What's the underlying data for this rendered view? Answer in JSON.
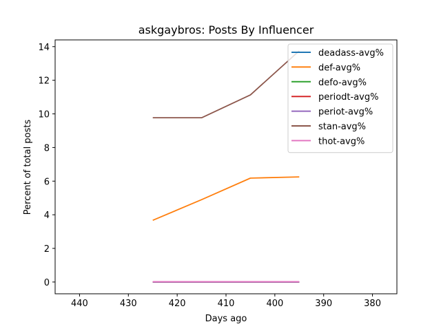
{
  "chart_data": {
    "type": "line",
    "title": "askgaybros: Posts By Influencer",
    "xlabel": "Days ago",
    "ylabel": "Percent of total posts",
    "xlim": [
      445,
      375
    ],
    "ylim": [
      -0.7,
      14.4
    ],
    "x_inverted": true,
    "xticks": [
      440,
      430,
      420,
      410,
      400,
      390,
      380
    ],
    "yticks": [
      0,
      2,
      4,
      6,
      8,
      10,
      12,
      14
    ],
    "grid": false,
    "legend_position": "upper right",
    "x": [
      425,
      415,
      405,
      395
    ],
    "series": [
      {
        "name": "deadass-avg%",
        "color": "#1f77b4",
        "values": [
          0,
          0,
          0,
          0
        ]
      },
      {
        "name": "def-avg%",
        "color": "#ff7f0e",
        "values": [
          3.67,
          4.9,
          6.18,
          6.25
        ]
      },
      {
        "name": "defo-avg%",
        "color": "#2ca02c",
        "values": [
          0,
          0,
          0,
          0
        ]
      },
      {
        "name": "periodt-avg%",
        "color": "#d62728",
        "values": [
          0,
          0,
          0,
          0
        ]
      },
      {
        "name": "periot-avg%",
        "color": "#9467bd",
        "values": [
          0,
          0,
          0,
          0
        ]
      },
      {
        "name": "stan-avg%",
        "color": "#8c564b",
        "values": [
          9.77,
          9.77,
          11.13,
          13.75
        ]
      },
      {
        "name": "thot-avg%",
        "color": "#e377c2",
        "values": [
          0.02,
          0.02,
          0.02,
          0.02
        ]
      }
    ]
  }
}
